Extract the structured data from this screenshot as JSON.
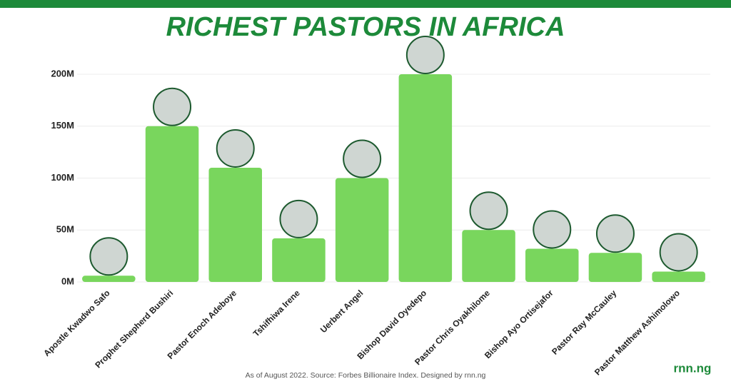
{
  "chart_data": {
    "type": "bar",
    "title": "RICHEST PASTORS IN AFRICA",
    "categories": [
      "Apostle Kwadwo Safo",
      "Prophet Shepherd Bushiri",
      "Pastor Enoch Adeboye",
      "Tshifhiwa Irene",
      "Uerbert Angel",
      "Bishop David Oyedepo",
      "Pastor Chris Oyakhilome",
      "Bishop Ayo Ortisejafor",
      "Pastor Ray McCauley",
      "Pastor Matthew Ashimolowo"
    ],
    "values": [
      6,
      150,
      110,
      42,
      100,
      200,
      50,
      32,
      28,
      10
    ],
    "color": "#79d65d",
    "ylim": [
      0,
      200
    ],
    "yticks": [
      {
        "value": 0,
        "label": "0M"
      },
      {
        "value": 50,
        "label": "50M"
      },
      {
        "value": 100,
        "label": "100M"
      },
      {
        "value": 150,
        "label": "150M"
      },
      {
        "value": 200,
        "label": "200M"
      }
    ],
    "grid": true,
    "footnote": "As of August 2022. Source: Forbes Billionaire Index. Designed by rnn.ng",
    "logo": "rnn.ng"
  }
}
